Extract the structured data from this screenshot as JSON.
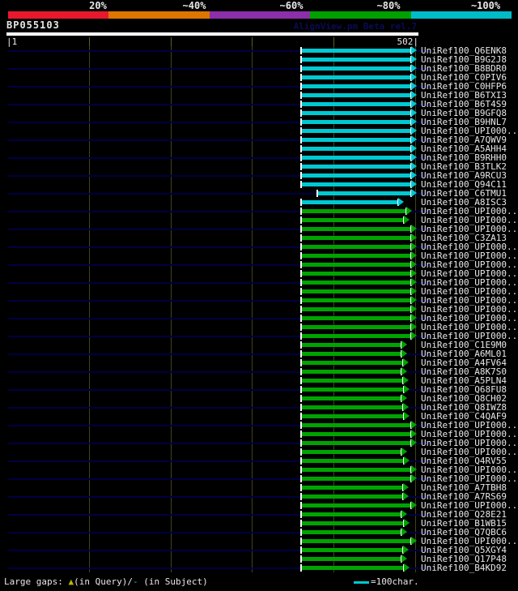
{
  "header": {
    "query_id": "BP055103",
    "watermark": "AlignView.pm Beta rel.7",
    "ruler_start": "|1",
    "ruler_end": "502|"
  },
  "footer": {
    "legend_prefix": "Large gaps: ",
    "gap_query_symbol": "▲",
    "legend_mid": "(in Query)/",
    "gap_subject_symbol": "-",
    "legend_suffix": " (in Subject)",
    "scalebar_label": "=100char."
  },
  "colors": {
    "background": "#000000",
    "text": "#e8e8e8",
    "watermark_navy": "#0b0b55",
    "scale_red": "#e8192c",
    "scale_orange": "#dd7500",
    "scale_purple": "#8c2fa8",
    "scale_green": "#00a000",
    "scale_cyan": "#00bcc8",
    "bar_cyan": "#00c9d2",
    "bar_green": "#00a400",
    "baseline_navy": "#000042",
    "gridline_olive": "#43431a",
    "ruler_tick_olive": "#5f5f22",
    "gap_triangle_yellow": "#b8b800"
  },
  "chart_data": {
    "type": "bar",
    "subtype": "blast-alignment-hit-map",
    "title": "BP055103",
    "query_length": 502,
    "x_axis": {
      "start": 1,
      "end": 502,
      "gridline_interval_chars": 100,
      "gridline_chars": [
        100,
        200,
        300,
        400,
        500
      ]
    },
    "scale_legend": [
      {
        "label": "20%",
        "color_key": "scale_red"
      },
      {
        "label": "~40%",
        "color_key": "scale_orange"
      },
      {
        "label": "~60%",
        "color_key": "scale_purple"
      },
      {
        "label": "~80%",
        "color_key": "scale_green"
      },
      {
        "label": "~100%",
        "color_key": "scale_cyan"
      }
    ],
    "hits": [
      {
        "label": "UniRef100_Q6ENK8",
        "bin": "~100%",
        "color": "cyan",
        "start": 360,
        "end": 502
      },
      {
        "label": "UniRef100_B9G2J8",
        "bin": "~100%",
        "color": "cyan",
        "start": 360,
        "end": 502
      },
      {
        "label": "UniRef100_B8BDR0",
        "bin": "~100%",
        "color": "cyan",
        "start": 360,
        "end": 502
      },
      {
        "label": "UniRef100_C0PIV6",
        "bin": "~100%",
        "color": "cyan",
        "start": 360,
        "end": 502
      },
      {
        "label": "UniRef100_C0HFP6",
        "bin": "~100%",
        "color": "cyan",
        "start": 360,
        "end": 502
      },
      {
        "label": "UniRef100_B6TXI3",
        "bin": "~100%",
        "color": "cyan",
        "start": 360,
        "end": 502
      },
      {
        "label": "UniRef100_B6T4S9",
        "bin": "~100%",
        "color": "cyan",
        "start": 360,
        "end": 502
      },
      {
        "label": "UniRef100_B9GFQ8",
        "bin": "~100%",
        "color": "cyan",
        "start": 360,
        "end": 502
      },
      {
        "label": "UniRef100_B9HNL7",
        "bin": "~100%",
        "color": "cyan",
        "start": 360,
        "end": 502
      },
      {
        "label": "UniRef100_UPI000..",
        "bin": "~100%",
        "color": "cyan",
        "start": 360,
        "end": 502
      },
      {
        "label": "UniRef100_A7QWV9",
        "bin": "~100%",
        "color": "cyan",
        "start": 360,
        "end": 502
      },
      {
        "label": "UniRef100_A5AHH4",
        "bin": "~100%",
        "color": "cyan",
        "start": 360,
        "end": 502
      },
      {
        "label": "UniRef100_B9RHH0",
        "bin": "~100%",
        "color": "cyan",
        "start": 360,
        "end": 502
      },
      {
        "label": "UniRef100_B3TLK2",
        "bin": "~100%",
        "color": "cyan",
        "start": 360,
        "end": 502
      },
      {
        "label": "UniRef100_A9RCU3",
        "bin": "~100%",
        "color": "cyan",
        "start": 360,
        "end": 502
      },
      {
        "label": "UniRef100_Q94C11",
        "bin": "~100%",
        "color": "cyan",
        "start": 360,
        "end": 502
      },
      {
        "label": "UniRef100_C6TMU1",
        "bin": "~100%",
        "color": "cyan",
        "start": 380,
        "end": 502
      },
      {
        "label": "UniRef100_A8ISC3",
        "bin": "~100%",
        "color": "cyan",
        "start": 360,
        "end": 486
      },
      {
        "label": "UniRef100_UPI000..",
        "bin": "~80%",
        "color": "green",
        "start": 360,
        "end": 496
      },
      {
        "label": "UniRef100_UPI000..",
        "bin": "~80%",
        "color": "green",
        "start": 360,
        "end": 493
      },
      {
        "label": "UniRef100_UPI000..",
        "bin": "~80%",
        "color": "green",
        "start": 360,
        "end": 502
      },
      {
        "label": "UniRef100_C3ZA13",
        "bin": "~80%",
        "color": "green",
        "start": 360,
        "end": 502
      },
      {
        "label": "UniRef100_UPI000..",
        "bin": "~80%",
        "color": "green",
        "start": 360,
        "end": 502
      },
      {
        "label": "UniRef100_UPI000..",
        "bin": "~80%",
        "color": "green",
        "start": 360,
        "end": 502
      },
      {
        "label": "UniRef100_UPI000..",
        "bin": "~80%",
        "color": "green",
        "start": 360,
        "end": 502
      },
      {
        "label": "UniRef100_UPI000..",
        "bin": "~80%",
        "color": "green",
        "start": 360,
        "end": 502
      },
      {
        "label": "UniRef100_UPI000..",
        "bin": "~80%",
        "color": "green",
        "start": 360,
        "end": 502
      },
      {
        "label": "UniRef100_UPI000..",
        "bin": "~80%",
        "color": "green",
        "start": 360,
        "end": 502
      },
      {
        "label": "UniRef100_UPI000..",
        "bin": "~80%",
        "color": "green",
        "start": 360,
        "end": 502
      },
      {
        "label": "UniRef100_UPI000..",
        "bin": "~80%",
        "color": "green",
        "start": 360,
        "end": 502
      },
      {
        "label": "UniRef100_UPI000..",
        "bin": "~80%",
        "color": "green",
        "start": 360,
        "end": 502
      },
      {
        "label": "UniRef100_UPI000..",
        "bin": "~80%",
        "color": "green",
        "start": 360,
        "end": 502
      },
      {
        "label": "UniRef100_UPI000..",
        "bin": "~80%",
        "color": "green",
        "start": 360,
        "end": 502
      },
      {
        "label": "UniRef100_C1E9M0",
        "bin": "~80%",
        "color": "green",
        "start": 360,
        "end": 490
      },
      {
        "label": "UniRef100_A6ML01",
        "bin": "~80%",
        "color": "green",
        "start": 360,
        "end": 490
      },
      {
        "label": "UniRef100_A4FV64",
        "bin": "~80%",
        "color": "green",
        "start": 360,
        "end": 492
      },
      {
        "label": "UniRef100_A8K7S0",
        "bin": "~80%",
        "color": "green",
        "start": 360,
        "end": 490
      },
      {
        "label": "UniRef100_A5PLN4",
        "bin": "~80%",
        "color": "green",
        "start": 360,
        "end": 492
      },
      {
        "label": "UniRef100_Q68FU8",
        "bin": "~80%",
        "color": "green",
        "start": 360,
        "end": 493
      },
      {
        "label": "UniRef100_Q8CH02",
        "bin": "~80%",
        "color": "green",
        "start": 360,
        "end": 490
      },
      {
        "label": "UniRef100_Q8IWZ8",
        "bin": "~80%",
        "color": "green",
        "start": 360,
        "end": 492
      },
      {
        "label": "UniRef100_C4QAF9",
        "bin": "~80%",
        "color": "green",
        "start": 360,
        "end": 493
      },
      {
        "label": "UniRef100_UPI000..",
        "bin": "~80%",
        "color": "green",
        "start": 360,
        "end": 502
      },
      {
        "label": "UniRef100_UPI000..",
        "bin": "~80%",
        "color": "green",
        "start": 360,
        "end": 502
      },
      {
        "label": "UniRef100_UPI000..",
        "bin": "~80%",
        "color": "green",
        "start": 360,
        "end": 502
      },
      {
        "label": "UniRef100_UPI000..",
        "bin": "~80%",
        "color": "green",
        "start": 360,
        "end": 490
      },
      {
        "label": "UniRef100_Q4RV55",
        "bin": "~80%",
        "color": "green",
        "start": 360,
        "end": 493
      },
      {
        "label": "UniRef100_UPI000..",
        "bin": "~80%",
        "color": "green",
        "start": 360,
        "end": 502
      },
      {
        "label": "UniRef100_UPI000..",
        "bin": "~80%",
        "color": "green",
        "start": 360,
        "end": 502
      },
      {
        "label": "UniRef100_A7TBH8",
        "bin": "~80%",
        "color": "green",
        "start": 360,
        "end": 492
      },
      {
        "label": "UniRef100_A7RS69",
        "bin": "~80%",
        "color": "green",
        "start": 360,
        "end": 492
      },
      {
        "label": "UniRef100_UPI000..",
        "bin": "~80%",
        "color": "green",
        "start": 360,
        "end": 502
      },
      {
        "label": "UniRef100_Q28E21",
        "bin": "~80%",
        "color": "green",
        "start": 360,
        "end": 490
      },
      {
        "label": "UniRef100_B1WB15",
        "bin": "~80%",
        "color": "green",
        "start": 360,
        "end": 493
      },
      {
        "label": "UniRef100_Q7QBC6",
        "bin": "~80%",
        "color": "green",
        "start": 360,
        "end": 490
      },
      {
        "label": "UniRef100_UPI000..",
        "bin": "~80%",
        "color": "green",
        "start": 360,
        "end": 502
      },
      {
        "label": "UniRef100_Q5XGY4",
        "bin": "~80%",
        "color": "green",
        "start": 360,
        "end": 492
      },
      {
        "label": "UniRef100_Q17P48",
        "bin": "~80%",
        "color": "green",
        "start": 360,
        "end": 490
      },
      {
        "label": "UniRef100_B4KD92",
        "bin": "~80%",
        "color": "green",
        "start": 360,
        "end": 493
      }
    ]
  }
}
